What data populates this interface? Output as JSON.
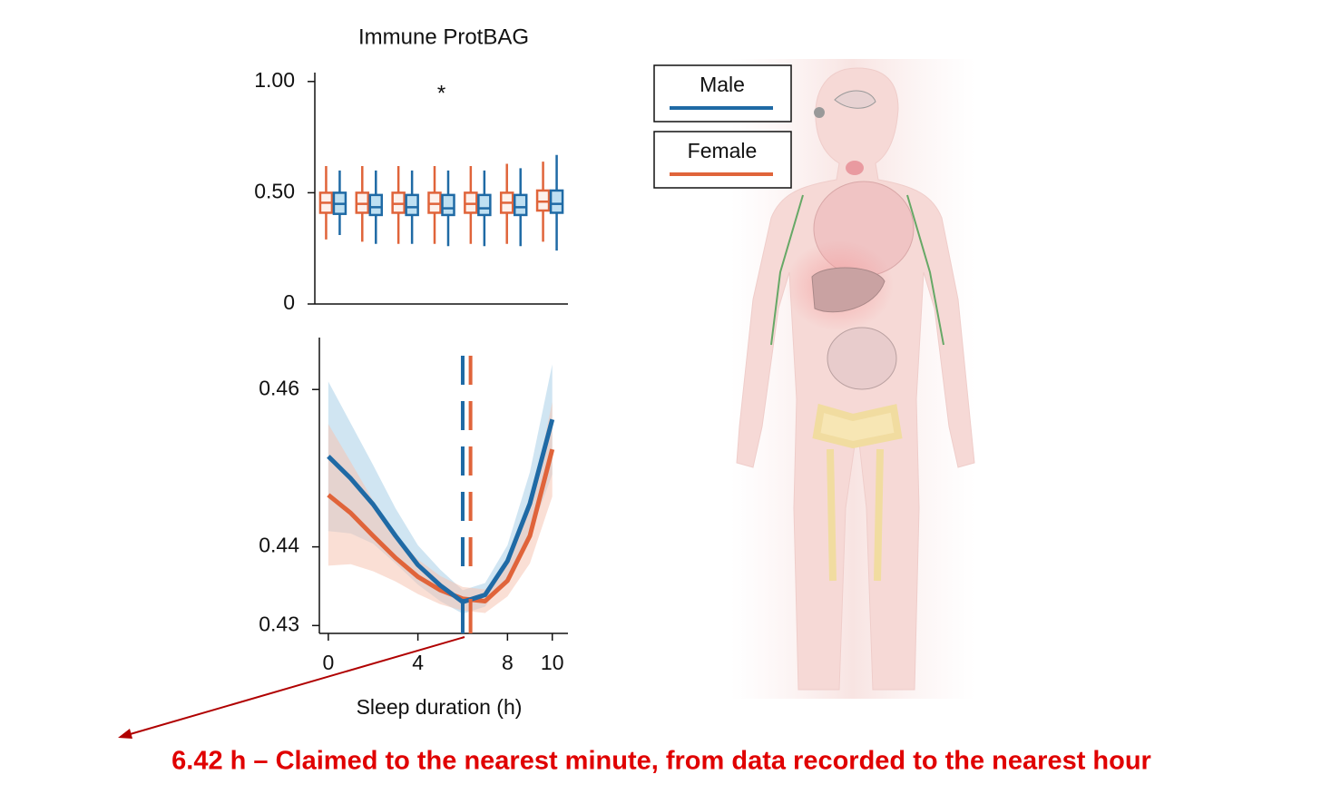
{
  "chart_data": [
    {
      "type": "box",
      "title": "Immune ProtBAG",
      "annotations": [
        "*"
      ],
      "categories": [
        null,
        null,
        null,
        null,
        null,
        null,
        null
      ],
      "ylim": [
        0,
        1.04
      ],
      "yticks": [
        0,
        {
          "value": 0.5,
          "label": "0.50"
        },
        {
          "value": 1,
          "label": "1.00"
        }
      ],
      "series": [
        {
          "color": "#e0643a",
          "fill": "#fdf1ec",
          "max": [
            0.62,
            0.62,
            0.62,
            0.62,
            0.62,
            0.63,
            0.64
          ],
          "q3": [
            0.5,
            0.5,
            0.5,
            0.5,
            0.5,
            0.5,
            0.51
          ],
          "median": [
            0.455,
            0.45,
            0.45,
            0.45,
            0.45,
            0.455,
            0.46
          ],
          "q1": [
            0.41,
            0.41,
            0.41,
            0.41,
            0.41,
            0.41,
            0.42
          ],
          "min": [
            0.29,
            0.28,
            0.27,
            0.27,
            0.27,
            0.27,
            0.28
          ]
        },
        {
          "color": "#1f6aa5",
          "fill": "#bfe0f2",
          "max": [
            0.6,
            0.6,
            0.6,
            0.6,
            0.6,
            0.61,
            0.67
          ],
          "q3": [
            0.5,
            0.49,
            0.49,
            0.49,
            0.49,
            0.49,
            0.51
          ],
          "median": [
            0.45,
            0.435,
            0.435,
            0.43,
            0.43,
            0.435,
            0.45
          ],
          "q1": [
            0.405,
            0.4,
            0.4,
            0.4,
            0.4,
            0.4,
            0.41
          ],
          "min": [
            0.31,
            0.27,
            0.27,
            0.26,
            0.26,
            0.26,
            0.24
          ]
        }
      ]
    },
    {
      "type": "line",
      "xlabel": "Sleep duration (h)",
      "note": "6.42 h – Claimed to the nearest minute, from data recorded to the nearest hour",
      "x": [
        0,
        1,
        2,
        3,
        4,
        5,
        6,
        7,
        8,
        9,
        10
      ],
      "xlim": [
        -0.4,
        10.7
      ],
      "xticks": [
        0,
        4,
        8,
        10
      ],
      "ylim": [
        0.429,
        0.4666
      ],
      "yticks": [
        0.46,
        0.44,
        0.43
      ],
      "series": [
        {
          "name": "Male",
          "color": "#1f6aa5",
          "band_color": "#a9cfe8",
          "minimum_x": 6.0,
          "values": [
            0.4515,
            0.4487,
            0.4454,
            0.4414,
            0.4377,
            0.4351,
            0.433,
            0.4339,
            0.4382,
            0.4455,
            0.4562
          ],
          "ci_upper": [
            0.461,
            0.4557,
            0.4504,
            0.4449,
            0.4402,
            0.4371,
            0.4345,
            0.4354,
            0.4402,
            0.4495,
            0.4632
          ],
          "ci_lower": [
            0.442,
            0.4417,
            0.4404,
            0.4379,
            0.4352,
            0.4331,
            0.4315,
            0.4324,
            0.4362,
            0.4415,
            0.4492
          ]
        },
        {
          "name": "Female",
          "color": "#e0643a",
          "band_color": "#f6c4b3",
          "minimum_x": 6.35,
          "values": [
            0.4466,
            0.4443,
            0.4414,
            0.4386,
            0.4362,
            0.4345,
            0.4334,
            0.4331,
            0.4357,
            0.4414,
            0.4524
          ],
          "ci_upper": [
            0.4556,
            0.4508,
            0.4459,
            0.4416,
            0.4384,
            0.4363,
            0.4349,
            0.4346,
            0.4377,
            0.4449,
            0.4584
          ],
          "ci_lower": [
            0.4376,
            0.4378,
            0.4369,
            0.4356,
            0.434,
            0.4327,
            0.4319,
            0.4316,
            0.4337,
            0.4379,
            0.4464
          ]
        }
      ]
    }
  ]
}
